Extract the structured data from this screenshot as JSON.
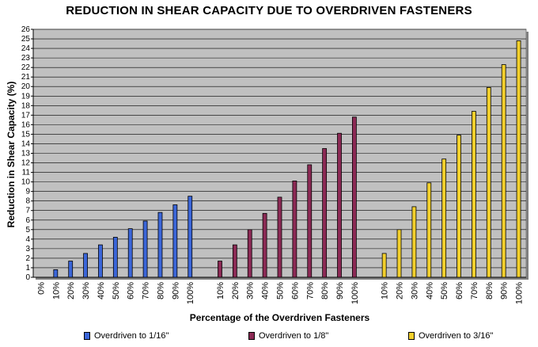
{
  "chart_data": {
    "type": "bar",
    "title": "REDUCTION IN SHEAR CAPACITY DUE TO OVERDRIVEN FASTENERS",
    "xlabel": "Percentage of the Overdriven Fasteners",
    "ylabel": "Reduction in Shear Capacity (%)",
    "ylim": [
      0,
      26
    ],
    "yticks": [
      "0",
      "1",
      "2",
      "3",
      "4",
      "5",
      "6",
      "7",
      "8",
      "9",
      "10",
      "11",
      "12",
      "13",
      "14",
      "15",
      "16",
      "17",
      "18",
      "19",
      "20",
      "21",
      "22",
      "23",
      "24",
      "25",
      "26"
    ],
    "grid": true,
    "legend_position": "bottom",
    "categories": [
      "0%",
      "10%",
      "20%",
      "30%",
      "40%",
      "50%",
      "60%",
      "70%",
      "80%",
      "90%",
      "100%",
      "",
      "10%",
      "20%",
      "30%",
      "40%",
      "50%",
      "60%",
      "70%",
      "80%",
      "90%",
      "100%",
      "",
      "10%",
      "20%",
      "30%",
      "40%",
      "50%",
      "60%",
      "70%",
      "80%",
      "90%",
      "100%"
    ],
    "series": [
      {
        "name": "Overdriven to 1/16\"",
        "color": "#3b66d9",
        "values": [
          0,
          0.8,
          1.7,
          2.5,
          3.4,
          4.2,
          5.1,
          5.9,
          6.8,
          7.6,
          8.5,
          null,
          null,
          null,
          null,
          null,
          null,
          null,
          null,
          null,
          null,
          null,
          null,
          null,
          null,
          null,
          null,
          null,
          null,
          null,
          null,
          null,
          null
        ]
      },
      {
        "name": "Overdriven to 1/8\"",
        "color": "#8c2a55",
        "values": [
          null,
          null,
          null,
          null,
          null,
          null,
          null,
          null,
          null,
          null,
          null,
          null,
          1.7,
          3.4,
          5.0,
          6.7,
          8.4,
          10.1,
          11.8,
          13.5,
          15.1,
          16.8,
          null,
          null,
          null,
          null,
          null,
          null,
          null,
          null,
          null,
          null,
          null
        ]
      },
      {
        "name": "Overdriven to 3/16\"",
        "color": "#f2cf2c",
        "values": [
          null,
          null,
          null,
          null,
          null,
          null,
          null,
          null,
          null,
          null,
          null,
          null,
          null,
          null,
          null,
          null,
          null,
          null,
          null,
          null,
          null,
          null,
          null,
          2.5,
          5.0,
          7.4,
          9.9,
          12.4,
          14.9,
          17.4,
          19.9,
          22.3,
          24.8
        ]
      }
    ]
  }
}
